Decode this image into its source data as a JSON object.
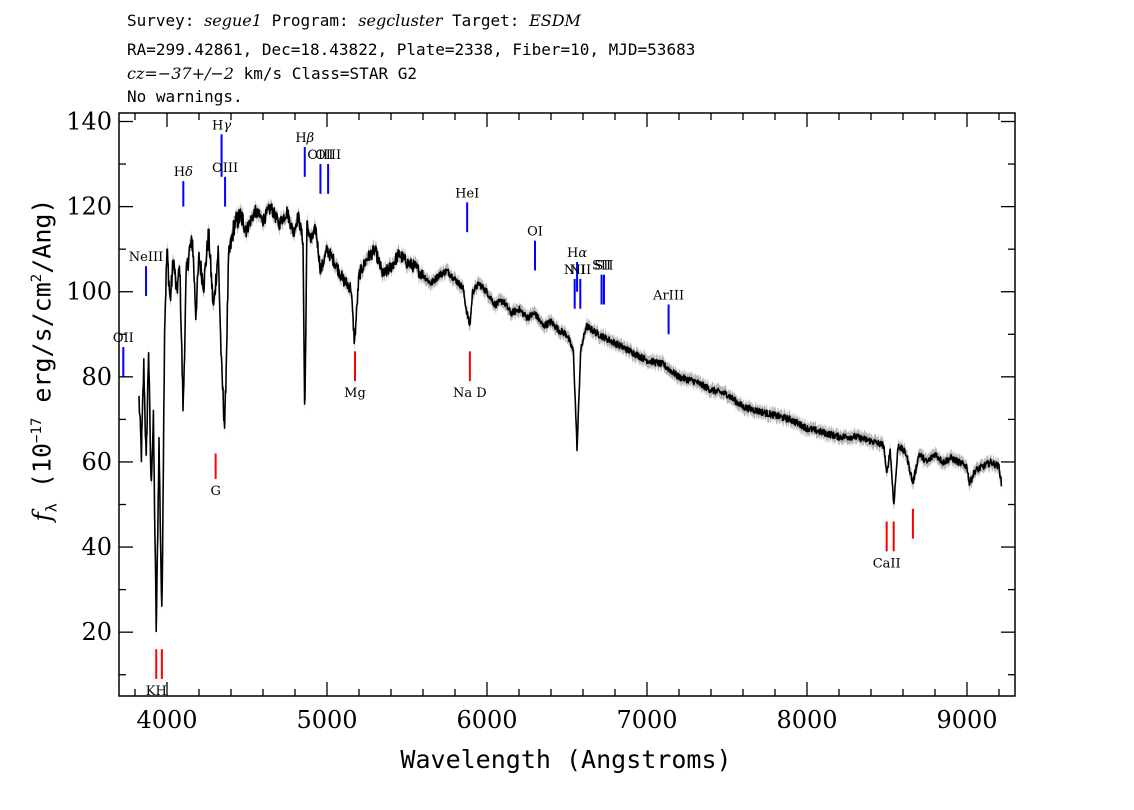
{
  "header": {
    "line1": {
      "survey_label": "Survey:",
      "survey": "segue1",
      "program_label": "Program:",
      "program": "segcluster",
      "target_label": "Target:",
      "target": "ESDM"
    },
    "line2": "RA=299.42861, Dec=18.43822, Plate=2338, Fiber=10, MJD=53683",
    "line3": {
      "cz_sym": "cz",
      "cz_val": "=−37+/−2",
      "rest": " km/s Class=STAR G2"
    },
    "line4": "No warnings."
  },
  "chart_data": {
    "type": "line",
    "xlabel": "Wavelength (Angstroms)",
    "ylabel_sym": "f",
    "ylabel_sub": "λ",
    "ylabel_pre": " (10",
    "ylabel_exp": "−17",
    "ylabel_mid": " erg/s/cm",
    "ylabel_exp2": "2",
    "ylabel_post": "/Ang)",
    "xlim": [
      3700,
      9300
    ],
    "ylim": [
      5,
      142
    ],
    "x_ticks": [
      "4000",
      "5000",
      "6000",
      "7000",
      "8000",
      "9000"
    ],
    "x_tick_values": [
      4000,
      5000,
      6000,
      7000,
      8000,
      9000
    ],
    "y_ticks": [
      "20",
      "40",
      "60",
      "80",
      "100",
      "120",
      "140"
    ],
    "y_tick_values": [
      20,
      40,
      60,
      80,
      100,
      120,
      140
    ],
    "series": [
      {
        "line_color": "#000000",
        "error_color": "#b4b4b4",
        "x": [
          3825,
          3840,
          3855,
          3870,
          3885,
          3900,
          3915,
          3933,
          3950,
          3968,
          3985,
          4000,
          4020,
          4040,
          4060,
          4080,
          4101,
          4120,
          4140,
          4160,
          4180,
          4200,
          4230,
          4260,
          4290,
          4320,
          4340,
          4361,
          4385,
          4420,
          4460,
          4500,
          4550,
          4600,
          4650,
          4700,
          4750,
          4790,
          4820,
          4850,
          4861,
          4875,
          4900,
          4930,
          4960,
          5000,
          5050,
          5100,
          5150,
          5172,
          5200,
          5250,
          5300,
          5350,
          5400,
          5450,
          5500,
          5550,
          5600,
          5650,
          5700,
          5750,
          5800,
          5850,
          5870,
          5893,
          5910,
          5950,
          6000,
          6050,
          6100,
          6150,
          6200,
          6250,
          6300,
          6350,
          6400,
          6450,
          6500,
          6540,
          6563,
          6585,
          6620,
          6700,
          6800,
          6900,
          7000,
          7100,
          7200,
          7300,
          7400,
          7500,
          7600,
          7700,
          7800,
          7900,
          8000,
          8100,
          8200,
          8300,
          8400,
          8480,
          8498,
          8520,
          8542,
          8570,
          8620,
          8662,
          8700,
          8750,
          8800,
          8850,
          8900,
          8950,
          9000,
          9015,
          9050,
          9100,
          9150,
          9200,
          9215
        ],
        "y": [
          75,
          62,
          83,
          60,
          87,
          55,
          70,
          20,
          65,
          23,
          92,
          110,
          98,
          108,
          100,
          106,
          72,
          104,
          110,
          112,
          95,
          108,
          102,
          114,
          96,
          110,
          83,
          68,
          108,
          116,
          118,
          115,
          119,
          117,
          120,
          116,
          119,
          114,
          118,
          112,
          70,
          116,
          112,
          115,
          105,
          110,
          107,
          103,
          101,
          88,
          104,
          108,
          110,
          104,
          106,
          109,
          107,
          106,
          104,
          102,
          104,
          105,
          103,
          101,
          96,
          92,
          100,
          102,
          100,
          97,
          98,
          95,
          96,
          94,
          95,
          92,
          93,
          91,
          90,
          86,
          63,
          86,
          92,
          90,
          88,
          86,
          84,
          83,
          80,
          79,
          77,
          76,
          73,
          72,
          71,
          70,
          68,
          67,
          66,
          66,
          65,
          64,
          57,
          63,
          50,
          64,
          62,
          55,
          62,
          60,
          62,
          60,
          61,
          60,
          59,
          55,
          58,
          59,
          60,
          59,
          55
        ]
      }
    ],
    "annotations": [
      {
        "label": "H",
        "greek": "δ",
        "color": "#0000ff",
        "x": 4102,
        "y1": 120,
        "y2": 126
      },
      {
        "label": "H",
        "greek": "γ",
        "color": "#0000ff",
        "x": 4341,
        "y1": 127,
        "y2": 137
      },
      {
        "label": "OIII",
        "color": "#0000ff",
        "x": 4363,
        "y1": 120,
        "y2": 127
      },
      {
        "label": "H",
        "greek": "β",
        "color": "#0000ff",
        "x": 4861,
        "y1": 127,
        "y2": 134
      },
      {
        "label": "OIII",
        "color": "#0000ff",
        "x": 4959,
        "y1": 123,
        "y2": 130
      },
      {
        "label": "OIII",
        "color": "#0000ff",
        "x": 5007,
        "y1": 123,
        "y2": 130
      },
      {
        "label": "HeI",
        "color": "#0000ff",
        "x": 5876,
        "y1": 114,
        "y2": 121
      },
      {
        "label": "OI",
        "color": "#0000ff",
        "x": 6300,
        "y1": 105,
        "y2": 112
      },
      {
        "label": "NII",
        "color": "#0000ff",
        "x": 6548,
        "y1": 96,
        "y2": 103
      },
      {
        "label": "H",
        "greek": "α",
        "color": "#0000ff",
        "x": 6563,
        "y1": 100,
        "y2": 107
      },
      {
        "label": "NII",
        "color": "#0000ff",
        "x": 6583,
        "y1": 96,
        "y2": 103
      },
      {
        "label": "SII",
        "color": "#0000ff",
        "x": 6716,
        "y1": 97,
        "y2": 104
      },
      {
        "label": "SII",
        "color": "#0000ff",
        "x": 6731,
        "y1": 97,
        "y2": 104
      },
      {
        "label": "ArIII",
        "color": "#0000ff",
        "x": 7135,
        "y1": 90,
        "y2": 97
      },
      {
        "label": "NeIII",
        "color": "#0000ff",
        "x": 3869,
        "y1": 99,
        "y2": 106
      },
      {
        "label": "OII",
        "color": "#0000ff",
        "x": 3727,
        "y1": 80,
        "y2": 87
      },
      {
        "label": "G",
        "color": "#ff0000",
        "x": 4304,
        "y1": 56,
        "y2": 62
      },
      {
        "label": "Mg",
        "color": "#ff0000",
        "x": 5175,
        "y1": 79,
        "y2": 86
      },
      {
        "label": "Na D",
        "color": "#ff0000",
        "x": 5893,
        "y1": 79,
        "y2": 86
      },
      {
        "label": "CaII",
        "color": "#ff0000",
        "x": 8498,
        "y1": 39,
        "y2": 46
      },
      {
        "label": "",
        "color": "#ff0000",
        "x": 8542,
        "y1": 39,
        "y2": 46
      },
      {
        "label": "",
        "color": "#ff0000",
        "x": 8662,
        "y1": 42,
        "y2": 49
      },
      {
        "label": "KH",
        "color": "#ff0000",
        "x": 3933,
        "y1": 9,
        "y2": 16
      },
      {
        "label": "",
        "color": "#ff0000",
        "x": 3968,
        "y1": 9,
        "y2": 16
      }
    ]
  }
}
